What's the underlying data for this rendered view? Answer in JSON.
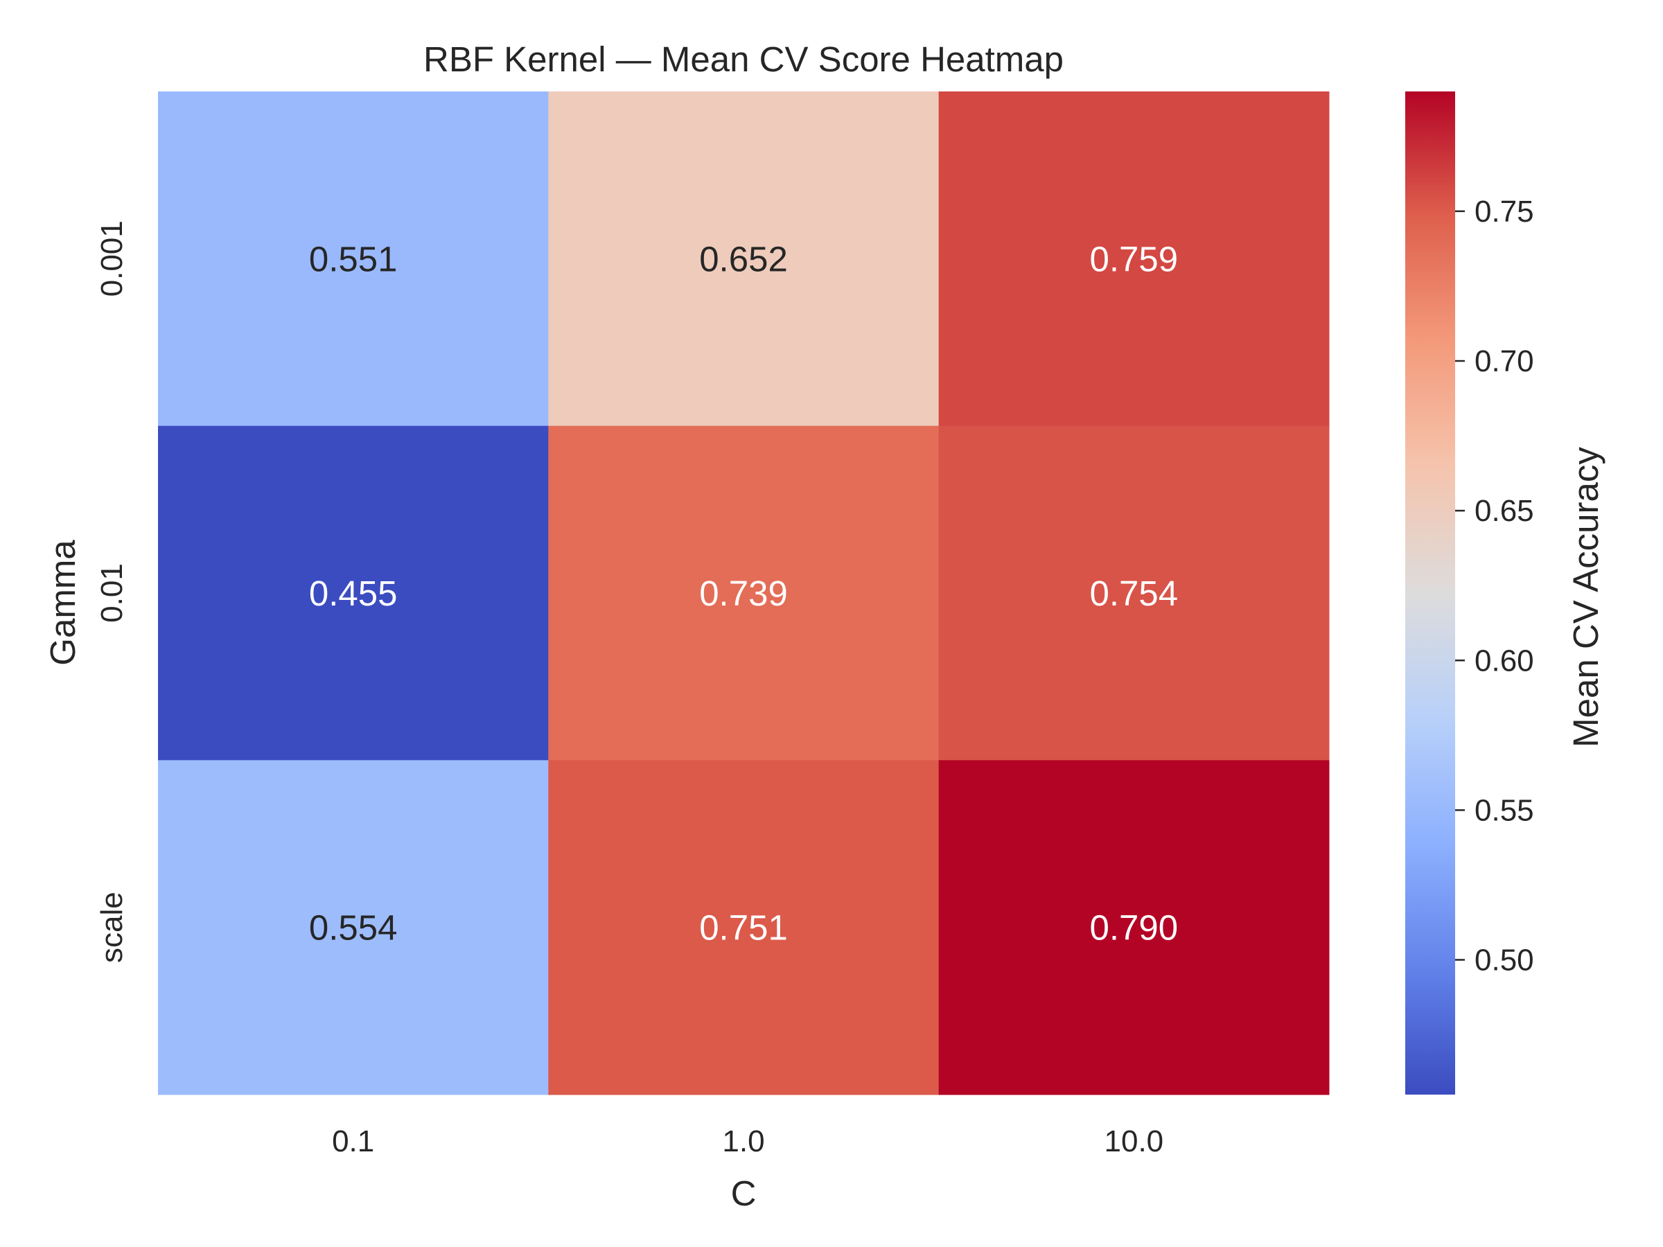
{
  "chart_data": {
    "type": "heatmap",
    "title": "RBF Kernel — Mean CV Score Heatmap",
    "xlabel": "C",
    "ylabel": "Gamma",
    "x_categories": [
      "0.1",
      "1.0",
      "10.0"
    ],
    "y_categories": [
      "0.001",
      "0.01",
      "scale"
    ],
    "values": [
      [
        0.551,
        0.652,
        0.759
      ],
      [
        0.455,
        0.739,
        0.754
      ],
      [
        0.554,
        0.751,
        0.79
      ]
    ],
    "value_labels": [
      [
        "0.551",
        "0.652",
        "0.759"
      ],
      [
        "0.455",
        "0.739",
        "0.754"
      ],
      [
        "0.554",
        "0.751",
        "0.790"
      ]
    ],
    "colormap": "coolwarm",
    "colorbar": {
      "label": "Mean CV Accuracy",
      "range": [
        0.455,
        0.79
      ],
      "ticks": [
        0.5,
        0.55,
        0.6,
        0.65,
        0.7,
        0.75
      ],
      "tick_labels": [
        "0.50",
        "0.55",
        "0.60",
        "0.65",
        "0.70",
        "0.75"
      ]
    },
    "colors": {
      "low": "#3b4cc0",
      "mid": "#dddcdc",
      "high": "#b40426",
      "text_dark": "#262626",
      "text_light": "#ffffff"
    }
  }
}
